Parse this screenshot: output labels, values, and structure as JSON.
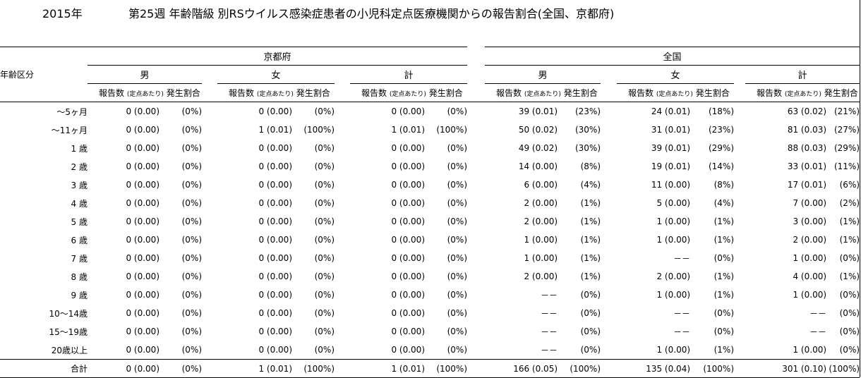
{
  "header": {
    "year": "2015年",
    "title": "第25週 年齢階級 別RSウイルス感染症患者の小児科定点医療機関からの報告割合(全国、京都府)"
  },
  "columns": {
    "age_header": "年齢区分",
    "regions": [
      "京都府",
      "全国"
    ],
    "sexes": [
      "男",
      "女",
      "計"
    ],
    "sub_count": "報告数",
    "sub_per": "(定点あたり)",
    "sub_ratio": "発生割合"
  },
  "rows": [
    {
      "age": "～5ヶ月",
      "k": [
        [
          "0 (0.00)",
          "(0%)"
        ],
        [
          "0 (0.00)",
          "(0%)"
        ],
        [
          "0 (0.00)",
          "(0%)"
        ]
      ],
      "n": [
        [
          "39 (0.01)",
          "(23%)"
        ],
        [
          "24 (0.01)",
          "(18%)"
        ],
        [
          "63 (0.02)",
          "(21%)"
        ]
      ]
    },
    {
      "age": "～11ヶ月",
      "k": [
        [
          "0 (0.00)",
          "(0%)"
        ],
        [
          "1 (0.01)",
          "(100%)"
        ],
        [
          "1 (0.01)",
          "(100%)"
        ]
      ],
      "n": [
        [
          "50 (0.02)",
          "(30%)"
        ],
        [
          "31 (0.01)",
          "(23%)"
        ],
        [
          "81 (0.03)",
          "(27%)"
        ]
      ]
    },
    {
      "age": "1 歳",
      "k": [
        [
          "0 (0.00)",
          "(0%)"
        ],
        [
          "0 (0.00)",
          "(0%)"
        ],
        [
          "0 (0.00)",
          "(0%)"
        ]
      ],
      "n": [
        [
          "49 (0.02)",
          "(30%)"
        ],
        [
          "39 (0.01)",
          "(29%)"
        ],
        [
          "88 (0.03)",
          "(29%)"
        ]
      ]
    },
    {
      "age": "2 歳",
      "k": [
        [
          "0 (0.00)",
          "(0%)"
        ],
        [
          "0 (0.00)",
          "(0%)"
        ],
        [
          "0 (0.00)",
          "(0%)"
        ]
      ],
      "n": [
        [
          "14 (0.00)",
          "(8%)"
        ],
        [
          "19 (0.01)",
          "(14%)"
        ],
        [
          "33 (0.01)",
          "(11%)"
        ]
      ]
    },
    {
      "age": "3 歳",
      "k": [
        [
          "0 (0.00)",
          "(0%)"
        ],
        [
          "0 (0.00)",
          "(0%)"
        ],
        [
          "0 (0.00)",
          "(0%)"
        ]
      ],
      "n": [
        [
          "6 (0.00)",
          "(4%)"
        ],
        [
          "11 (0.00)",
          "(8%)"
        ],
        [
          "17 (0.01)",
          "(6%)"
        ]
      ]
    },
    {
      "age": "4 歳",
      "k": [
        [
          "0 (0.00)",
          "(0%)"
        ],
        [
          "0 (0.00)",
          "(0%)"
        ],
        [
          "0 (0.00)",
          "(0%)"
        ]
      ],
      "n": [
        [
          "2 (0.00)",
          "(1%)"
        ],
        [
          "5 (0.00)",
          "(4%)"
        ],
        [
          "7 (0.00)",
          "(2%)"
        ]
      ]
    },
    {
      "age": "5 歳",
      "k": [
        [
          "0 (0.00)",
          "(0%)"
        ],
        [
          "0 (0.00)",
          "(0%)"
        ],
        [
          "0 (0.00)",
          "(0%)"
        ]
      ],
      "n": [
        [
          "2 (0.00)",
          "(1%)"
        ],
        [
          "1 (0.00)",
          "(1%)"
        ],
        [
          "3 (0.00)",
          "(1%)"
        ]
      ]
    },
    {
      "age": "6 歳",
      "k": [
        [
          "0 (0.00)",
          "(0%)"
        ],
        [
          "0 (0.00)",
          "(0%)"
        ],
        [
          "0 (0.00)",
          "(0%)"
        ]
      ],
      "n": [
        [
          "1 (0.00)",
          "(1%)"
        ],
        [
          "1 (0.00)",
          "(1%)"
        ],
        [
          "2 (0.00)",
          "(1%)"
        ]
      ]
    },
    {
      "age": "7 歳",
      "k": [
        [
          "0 (0.00)",
          "(0%)"
        ],
        [
          "0 (0.00)",
          "(0%)"
        ],
        [
          "0 (0.00)",
          "(0%)"
        ]
      ],
      "n": [
        [
          "1 (0.00)",
          "(1%)"
        ],
        [
          "－－",
          "(0%)"
        ],
        [
          "1 (0.00)",
          "(0%)"
        ]
      ]
    },
    {
      "age": "8 歳",
      "k": [
        [
          "0 (0.00)",
          "(0%)"
        ],
        [
          "0 (0.00)",
          "(0%)"
        ],
        [
          "0 (0.00)",
          "(0%)"
        ]
      ],
      "n": [
        [
          "2 (0.00)",
          "(1%)"
        ],
        [
          "2 (0.00)",
          "(1%)"
        ],
        [
          "4 (0.00)",
          "(1%)"
        ]
      ]
    },
    {
      "age": "9 歳",
      "k": [
        [
          "0 (0.00)",
          "(0%)"
        ],
        [
          "0 (0.00)",
          "(0%)"
        ],
        [
          "0 (0.00)",
          "(0%)"
        ]
      ],
      "n": [
        [
          "－－",
          "(0%)"
        ],
        [
          "1 (0.00)",
          "(1%)"
        ],
        [
          "1 (0.00)",
          "(0%)"
        ]
      ]
    },
    {
      "age": "10～14歳",
      "k": [
        [
          "0 (0.00)",
          "(0%)"
        ],
        [
          "0 (0.00)",
          "(0%)"
        ],
        [
          "0 (0.00)",
          "(0%)"
        ]
      ],
      "n": [
        [
          "－－",
          "(0%)"
        ],
        [
          "－－",
          "(0%)"
        ],
        [
          "－－",
          "(0%)"
        ]
      ]
    },
    {
      "age": "15～19歳",
      "k": [
        [
          "0 (0.00)",
          "(0%)"
        ],
        [
          "0 (0.00)",
          "(0%)"
        ],
        [
          "0 (0.00)",
          "(0%)"
        ]
      ],
      "n": [
        [
          "－－",
          "(0%)"
        ],
        [
          "－－",
          "(0%)"
        ],
        [
          "－－",
          "(0%)"
        ]
      ]
    },
    {
      "age": "20歳以上",
      "k": [
        [
          "0 (0.00)",
          "(0%)"
        ],
        [
          "0 (0.00)",
          "(0%)"
        ],
        [
          "0 (0.00)",
          "(0%)"
        ]
      ],
      "n": [
        [
          "－－",
          "(0%)"
        ],
        [
          "1 (0.00)",
          "(1%)"
        ],
        [
          "1 (0.00)",
          "(0%)"
        ]
      ]
    }
  ],
  "total": {
    "age": "合計",
    "k": [
      [
        "0 (0.00)",
        "(0%)"
      ],
      [
        "1 (0.01)",
        "(100%)"
      ],
      [
        "1 (0.01)",
        "(100%)"
      ]
    ],
    "n": [
      [
        "166 (0.05)",
        "(100%)"
      ],
      [
        "135 (0.04)",
        "(100%)"
      ],
      [
        "301 (0.10)",
        "(100%)"
      ]
    ]
  }
}
